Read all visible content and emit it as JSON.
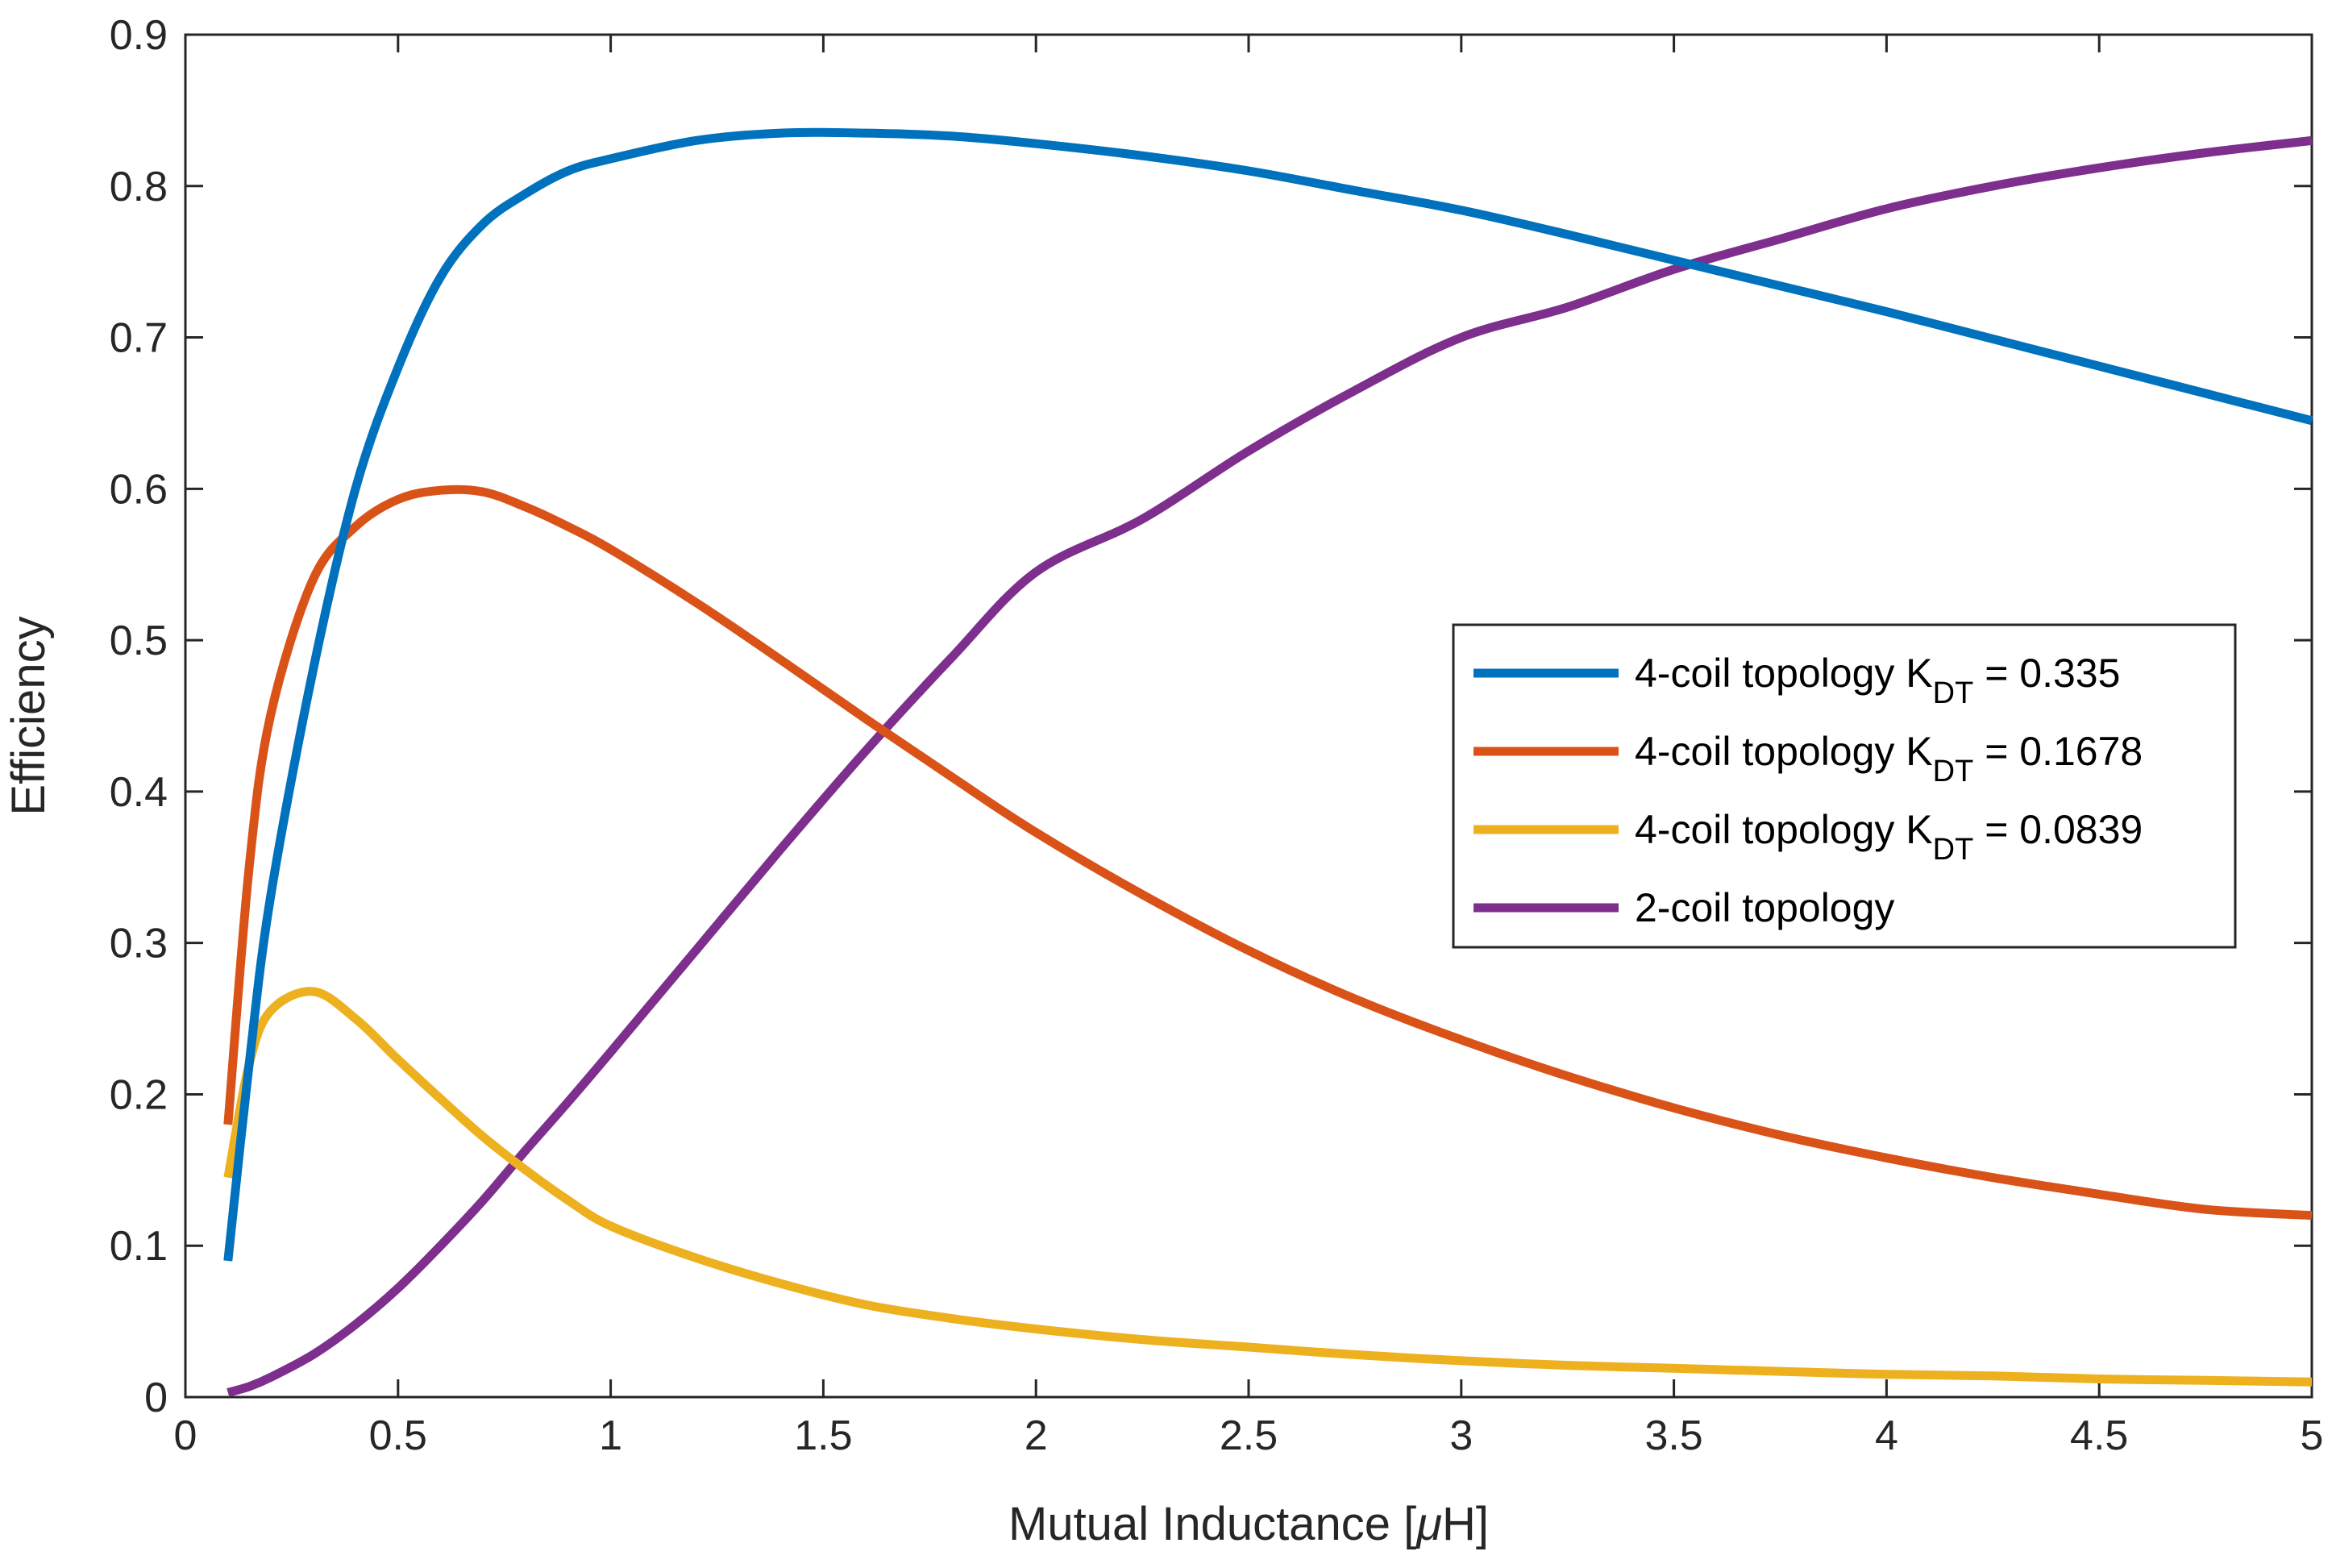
{
  "chart_data": {
    "type": "line",
    "title": "",
    "xlabel": "Mutual Inductance [μH]",
    "xlabel_parts": {
      "main": "Mutual Inductance [",
      "mu": "μ",
      "end": "H]"
    },
    "ylabel": "Efficiency",
    "xlim": [
      0,
      5
    ],
    "ylim": [
      0,
      0.9
    ],
    "xticks": [
      0,
      0.5,
      1,
      1.5,
      2,
      2.5,
      3,
      3.5,
      4,
      4.5,
      5
    ],
    "xtick_labels": [
      "0",
      "0.5",
      "1",
      "1.5",
      "2",
      "2.5",
      "3",
      "3.5",
      "4",
      "4.5",
      "5"
    ],
    "yticks": [
      0,
      0.1,
      0.2,
      0.3,
      0.4,
      0.5,
      0.6,
      0.7,
      0.8,
      0.9
    ],
    "ytick_labels": [
      "0",
      "0.1",
      "0.2",
      "0.3",
      "0.4",
      "0.5",
      "0.6",
      "0.7",
      "0.8",
      "0.9"
    ],
    "grid": false,
    "legend_position": "center-right",
    "x": [
      0.1,
      0.15,
      0.2,
      0.3,
      0.4,
      0.5,
      0.6,
      0.7,
      0.8,
      0.9,
      1.0,
      1.2,
      1.4,
      1.6,
      1.8,
      2.0,
      2.25,
      2.5,
      2.75,
      3.0,
      3.25,
      3.5,
      3.75,
      4.0,
      4.25,
      4.5,
      4.75,
      5.0
    ],
    "series": [
      {
        "name": "4-coil topology K_DT = 0.335",
        "legend_parts": {
          "main": "4-coil topology K",
          "sub": "DT",
          "end": " = 0.335"
        },
        "color": "#0072BD",
        "values": [
          0.09,
          0.22,
          0.33,
          0.48,
          0.6,
          0.68,
          0.74,
          0.775,
          0.795,
          0.81,
          0.818,
          0.83,
          0.835,
          0.835,
          0.833,
          0.828,
          0.82,
          0.81,
          0.797,
          0.784,
          0.768,
          0.751,
          0.734,
          0.717,
          0.699,
          0.681,
          0.663,
          0.645
        ]
      },
      {
        "name": "4-coil topology K_DT = 0.1678",
        "legend_parts": {
          "main": "4-coil topology K",
          "sub": "DT",
          "end": " = 0.1678"
        },
        "color": "#D95319",
        "values": [
          0.18,
          0.35,
          0.45,
          0.54,
          0.575,
          0.593,
          0.599,
          0.598,
          0.588,
          0.575,
          0.56,
          0.525,
          0.487,
          0.448,
          0.41,
          0.373,
          0.332,
          0.295,
          0.263,
          0.236,
          0.212,
          0.191,
          0.173,
          0.158,
          0.145,
          0.134,
          0.124,
          0.12
        ]
      },
      {
        "name": "4-coil topology K_DT = 0.0839",
        "legend_parts": {
          "main": "4-coil topology K",
          "sub": "DT",
          "end": " = 0.0839"
        },
        "color": "#EDB120",
        "values": [
          0.145,
          0.22,
          0.255,
          0.268,
          0.25,
          0.223,
          0.197,
          0.172,
          0.15,
          0.13,
          0.113,
          0.092,
          0.075,
          0.061,
          0.052,
          0.045,
          0.038,
          0.033,
          0.028,
          0.024,
          0.021,
          0.019,
          0.017,
          0.015,
          0.014,
          0.012,
          0.011,
          0.01
        ]
      },
      {
        "name": "2-coil topology",
        "legend_parts": {
          "main": "2-coil topology",
          "sub": "",
          "end": ""
        },
        "color": "#7E2F8E",
        "values": [
          0.003,
          0.007,
          0.013,
          0.028,
          0.048,
          0.072,
          0.1,
          0.13,
          0.163,
          0.195,
          0.228,
          0.295,
          0.362,
          0.427,
          0.488,
          0.545,
          0.58,
          0.625,
          0.665,
          0.7,
          0.72,
          0.745,
          0.765,
          0.785,
          0.8,
          0.812,
          0.822,
          0.83
        ]
      }
    ]
  }
}
